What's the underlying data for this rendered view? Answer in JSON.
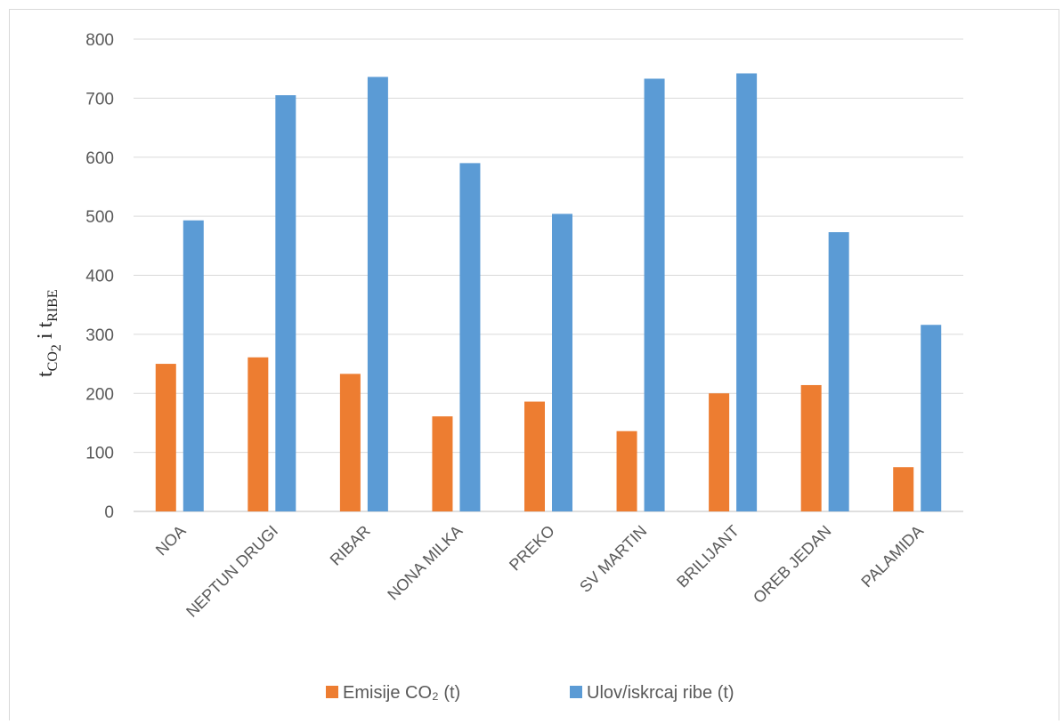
{
  "chart_data": {
    "type": "bar",
    "categories": [
      "NOA",
      "NEPTUN DRUGI",
      "RIBAR",
      "NONA MILKA",
      "PREKO",
      "SV MARTIN",
      "BRILIJANT",
      "OREB JEDAN",
      "PALAMIDA"
    ],
    "series": [
      {
        "name": "Emisije CO₂ (t)",
        "color": "#ed7d31",
        "values": [
          250,
          261,
          233,
          161,
          186,
          136,
          200,
          214,
          75
        ]
      },
      {
        "name": "Ulov/iskrcaj ribe (t)",
        "color": "#5b9bd5",
        "values": [
          493,
          705,
          736,
          590,
          504,
          733,
          742,
          473,
          316
        ]
      }
    ],
    "ylim": [
      0,
      800
    ],
    "yticks": [
      0,
      100,
      200,
      300,
      400,
      500,
      600,
      700,
      800
    ],
    "ylabel": {
      "main1": "t",
      "sub1": "CO",
      "subsub": "2",
      "mid": " i t",
      "sub2": "RIBE"
    },
    "legend_position": "bottom",
    "grid": true
  }
}
